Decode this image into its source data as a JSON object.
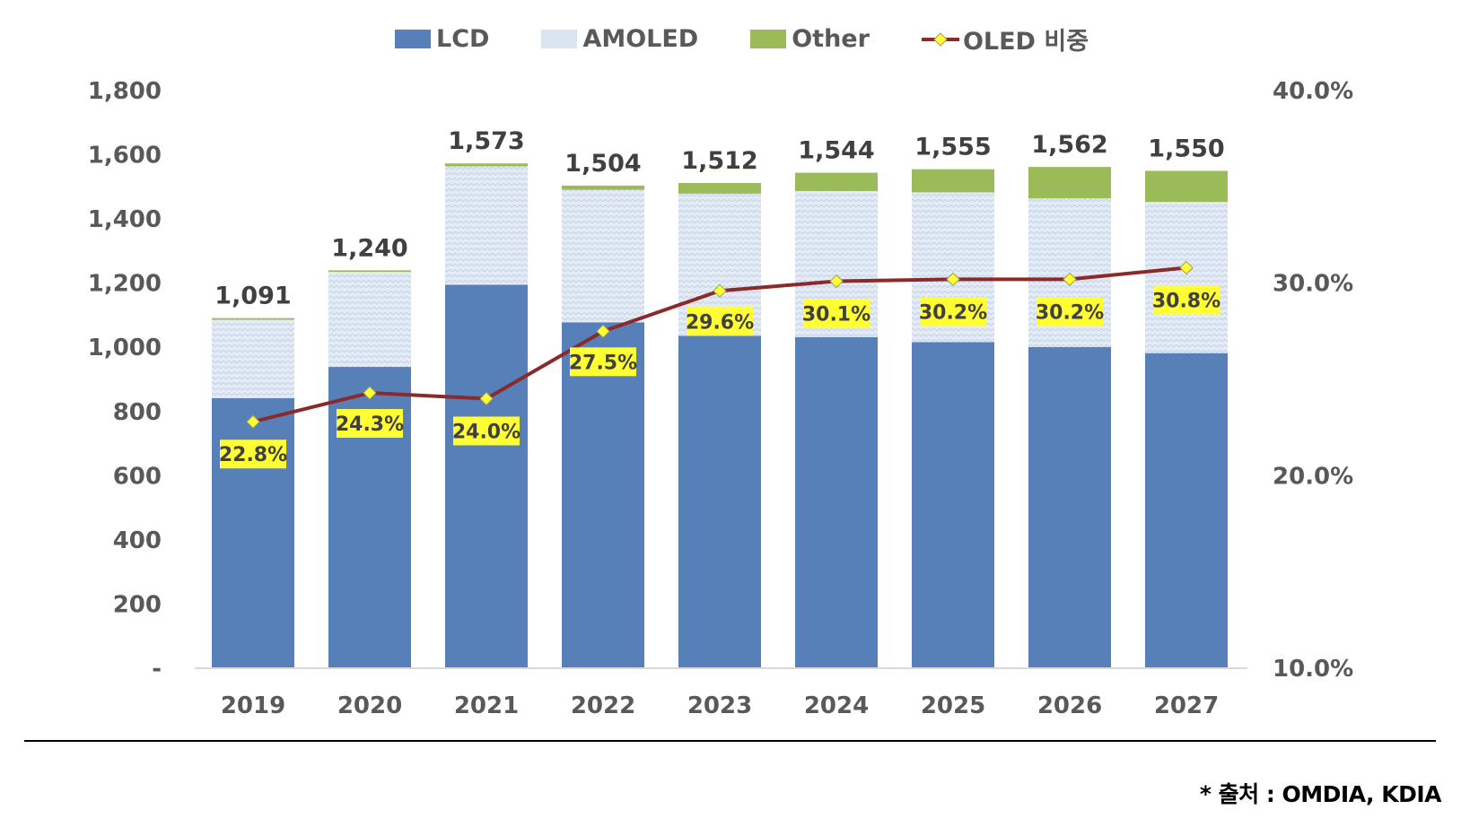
{
  "legend": {
    "lcd": "LCD",
    "amoled": "AMOLED",
    "other": "Other",
    "oled_share": "OLED 비중"
  },
  "source_note": "* 출처 : OMDIA, KDIA",
  "colors": {
    "lcd": "#5780b8",
    "amoled": "#dbe4f1",
    "other": "#9bbb59",
    "line": "#8b2a2a",
    "marker": "#ffff33",
    "label_bg": "#ffff33",
    "axis_text": "#595959"
  },
  "chart_data": {
    "type": "bar",
    "stacked": true,
    "categories": [
      "2019",
      "2020",
      "2021",
      "2022",
      "2023",
      "2024",
      "2025",
      "2026",
      "2027"
    ],
    "series": [
      {
        "name": "LCD",
        "values": [
          842,
          939,
          1195,
          1078,
          1036,
          1032,
          1016,
          1001,
          982
        ]
      },
      {
        "name": "AMOLED",
        "values": [
          244,
          296,
          369,
          413,
          443,
          455,
          467,
          463,
          471
        ]
      },
      {
        "name": "Other",
        "values": [
          5,
          5,
          9,
          13,
          33,
          57,
          72,
          98,
          97
        ]
      }
    ],
    "totals": [
      "1,091",
      "1,240",
      "1,573",
      "1,504",
      "1,512",
      "1,544",
      "1,555",
      "1,562",
      "1,550"
    ],
    "line_series": {
      "name": "OLED 비중",
      "values": [
        22.8,
        24.3,
        24.0,
        27.5,
        29.6,
        30.1,
        30.2,
        30.2,
        30.8
      ],
      "labels": [
        "22.8%",
        "24.3%",
        "24.0%",
        "27.5%",
        "29.6%",
        "30.1%",
        "30.2%",
        "30.2%",
        "30.8%"
      ]
    },
    "y_left": {
      "min": 0,
      "max": 1800,
      "ticks": [
        0,
        200,
        400,
        600,
        800,
        1000,
        1200,
        1400,
        1600,
        1800
      ],
      "tick_labels": [
        "-",
        "200",
        "400",
        "600",
        "800",
        "1,000",
        "1,200",
        "1,400",
        "1,600",
        "1,800"
      ]
    },
    "y_right": {
      "min": 10,
      "max": 40,
      "ticks": [
        10,
        20,
        30,
        40
      ],
      "tick_labels": [
        "10.0%",
        "20.0%",
        "30.0%",
        "40.0%"
      ]
    },
    "grid": false
  }
}
